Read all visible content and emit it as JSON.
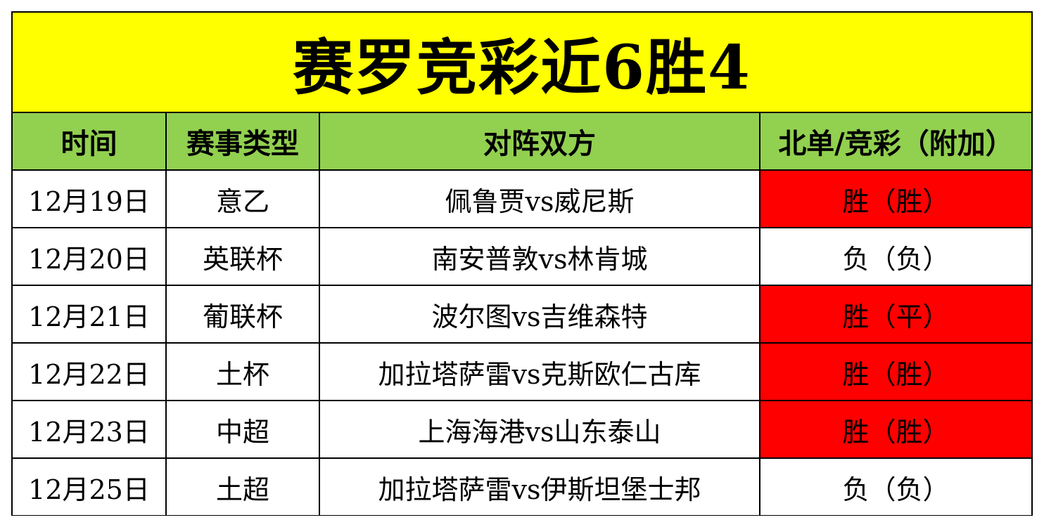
{
  "title": "赛罗竞彩近6胜4",
  "columns": {
    "date": "时间",
    "league": "赛事类型",
    "match": "对阵双方",
    "result": "北单/竞彩（附加）"
  },
  "colors": {
    "title_bg": "#ffff00",
    "header_bg": "#92d050",
    "win_highlight": "#ff0000",
    "default_bg": "#ffffff"
  },
  "rows": [
    {
      "date": "12月19日",
      "league": "意乙",
      "match": "佩鲁贾vs威尼斯",
      "result": "胜（胜）",
      "highlighted": true
    },
    {
      "date": "12月20日",
      "league": "英联杯",
      "match": "南安普敦vs林肯城",
      "result": "负（负）",
      "highlighted": false
    },
    {
      "date": "12月21日",
      "league": "葡联杯",
      "match": "波尔图vs吉维森特",
      "result": "胜（平）",
      "highlighted": true
    },
    {
      "date": "12月22日",
      "league": "土杯",
      "match": "加拉塔萨雷vs克斯欧仁古库",
      "result": "胜（胜）",
      "highlighted": true
    },
    {
      "date": "12月23日",
      "league": "中超",
      "match": "上海海港vs山东泰山",
      "result": "胜（胜）",
      "highlighted": true
    },
    {
      "date": "12月25日",
      "league": "土超",
      "match": "加拉塔萨雷vs伊斯坦堡士邦",
      "result": "负（负）",
      "highlighted": false
    }
  ]
}
